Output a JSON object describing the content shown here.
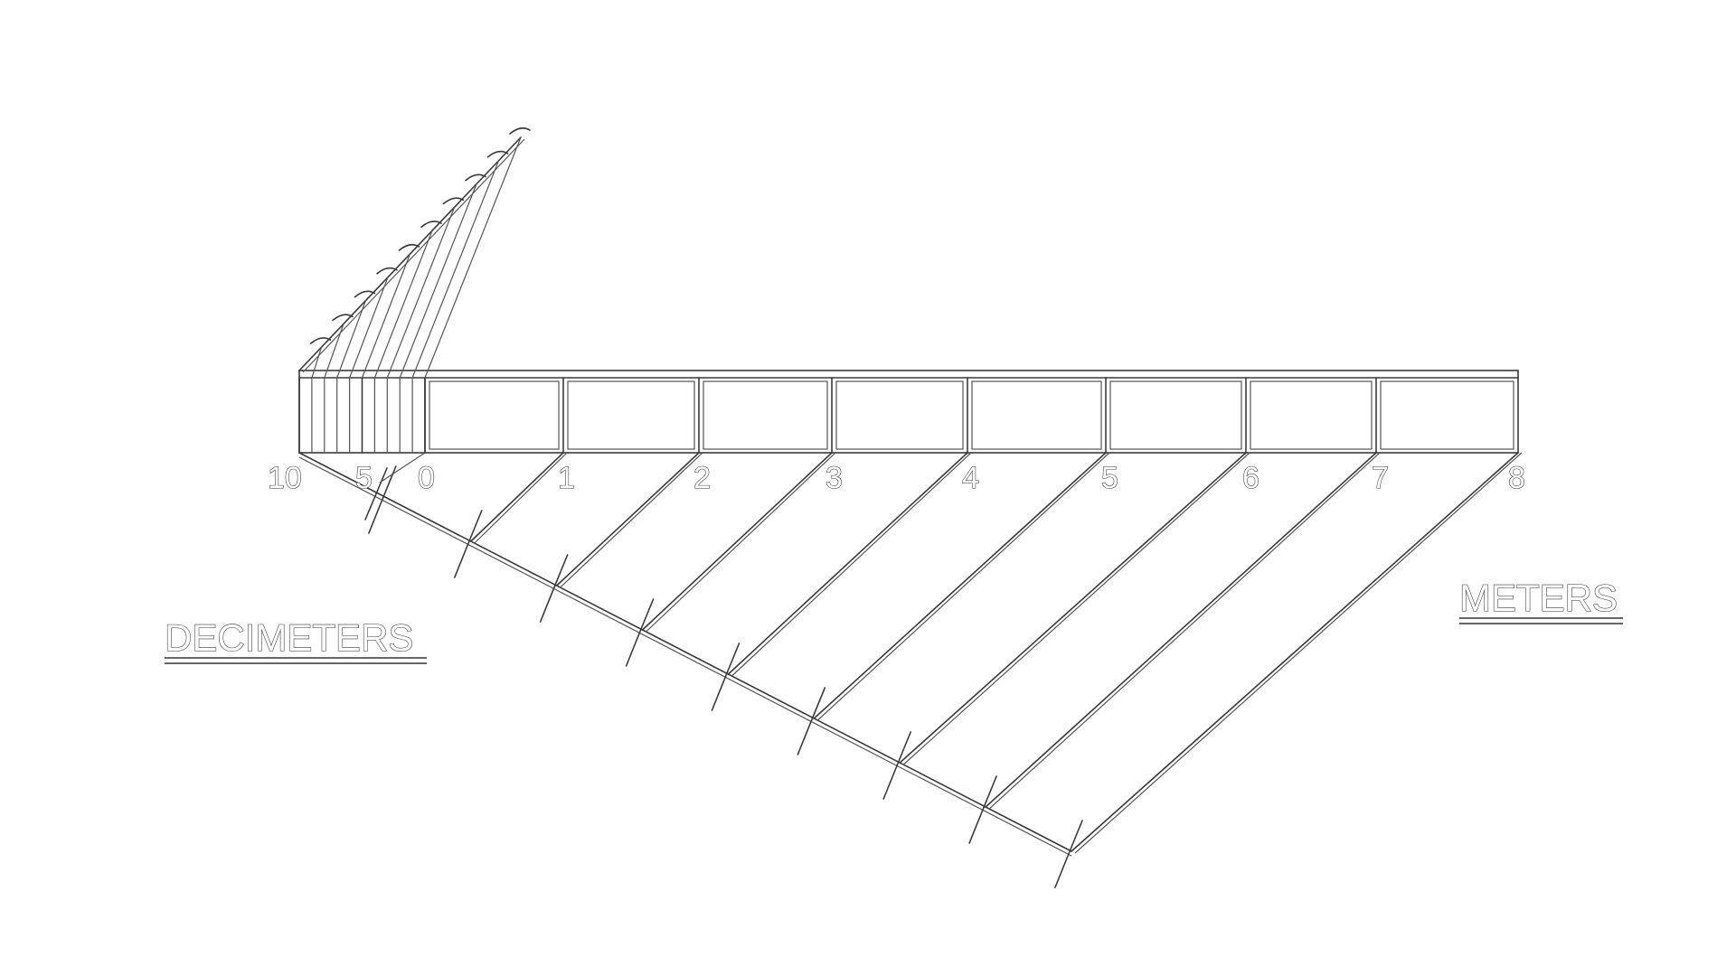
{
  "scale": {
    "meter_ticks": [
      "0",
      "1",
      "2",
      "3",
      "4",
      "5",
      "6",
      "7",
      "8"
    ],
    "decimeter_ticks": [
      "10",
      "5"
    ],
    "decimeter_subdivisions": 10
  },
  "labels": {
    "left_unit": "DECIMETERS",
    "right_unit": "METERS"
  }
}
